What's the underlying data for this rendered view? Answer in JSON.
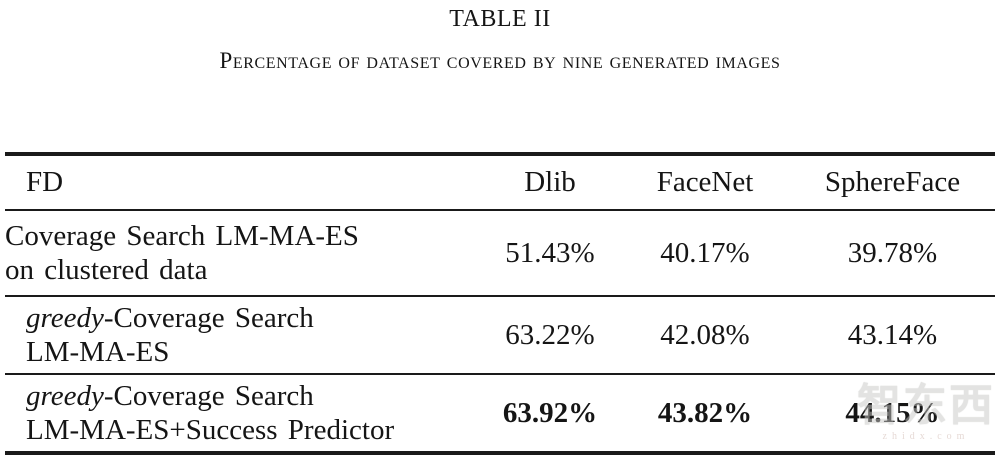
{
  "title": "TABLE II",
  "caption": "Percentage of dataset covered by nine generated images",
  "table": {
    "headers": [
      "FD",
      "Dlib",
      "FaceNet",
      "SphereFace"
    ],
    "rows": [
      {
        "label_italic": "",
        "label_rest": "Coverage Search LM-MA-ES",
        "label_line2": "on clustered data",
        "values": [
          "51.43%",
          "40.17%",
          "39.78%"
        ]
      },
      {
        "label_italic": "greedy",
        "label_rest": "-Coverage Search",
        "label_line2": "LM-MA-ES",
        "values": [
          "63.22%",
          "42.08%",
          "43.14%"
        ]
      },
      {
        "label_italic": "greedy",
        "label_rest": "-Coverage Search",
        "label_line2": "LM-MA-ES+Success Predictor",
        "values": [
          "63.92%",
          "43.82%",
          "44.15%"
        ]
      }
    ]
  },
  "watermark": {
    "text": "智东西",
    "subtext": "zhidx.com"
  }
}
